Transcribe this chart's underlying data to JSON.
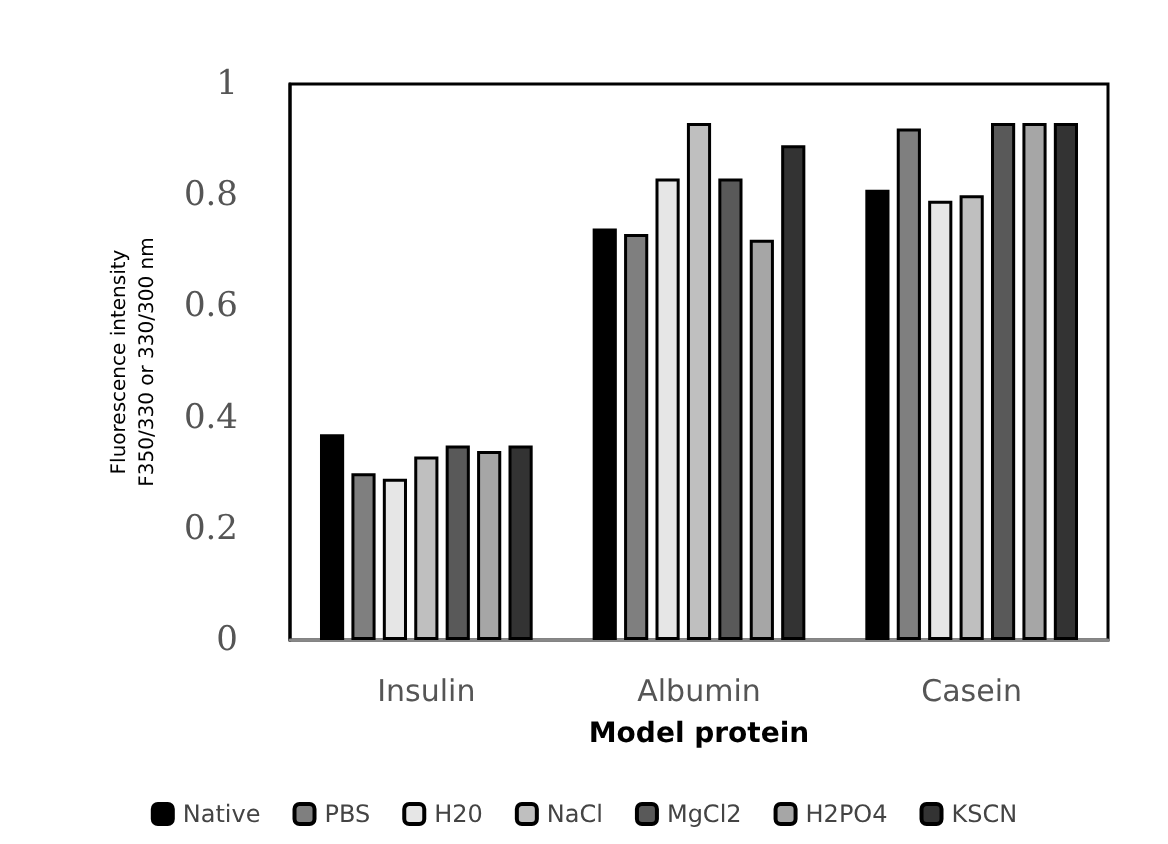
{
  "chart_data": {
    "type": "bar",
    "xlabel": "Model protein",
    "ylabel": "Fluorescence intensity\nF350/330 or 330/300 nm",
    "categories": [
      "Insulin",
      "Albumin",
      "Casein"
    ],
    "series": [
      {
        "name": "Native",
        "color": "#000000",
        "values": [
          0.37,
          0.74,
          0.81
        ]
      },
      {
        "name": "PBS",
        "color": "#7f7f7f",
        "values": [
          0.3,
          0.73,
          0.92
        ]
      },
      {
        "name": "H20",
        "color": "#e6e6e6",
        "values": [
          0.29,
          0.83,
          0.79
        ]
      },
      {
        "name": "NaCl",
        "color": "#bfbfbf",
        "values": [
          0.33,
          0.93,
          0.8
        ]
      },
      {
        "name": "MgCl2",
        "color": "#595959",
        "values": [
          0.35,
          0.83,
          0.93
        ]
      },
      {
        "name": "H2PO4",
        "color": "#a6a6a6",
        "values": [
          0.34,
          0.72,
          0.93
        ]
      },
      {
        "name": "KSCN",
        "color": "#333333",
        "values": [
          0.35,
          0.89,
          0.93
        ]
      }
    ],
    "ylim": [
      0,
      1
    ],
    "yticks": [
      0,
      0.2,
      0.4,
      0.6,
      0.8,
      1
    ],
    "grid": false,
    "legend": "bottom"
  }
}
